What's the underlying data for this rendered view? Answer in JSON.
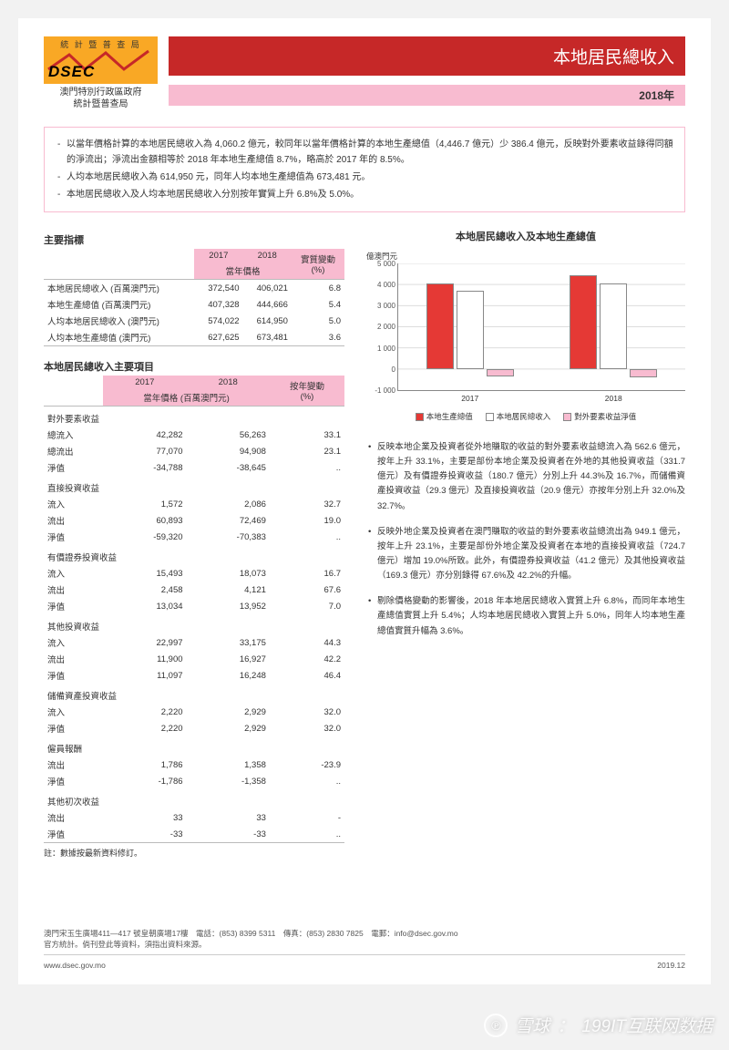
{
  "header": {
    "logo_top": "統 計 暨 普 查 局",
    "logo_text": "DSEC",
    "org_line1": "澳門特別行政區政府",
    "org_line2": "統計暨普查局",
    "title": "本地居民總收入",
    "year": "2018年"
  },
  "summary": {
    "items": [
      "以當年價格計算的本地居民總收入為 4,060.2 億元，較同年以當年價格計算的本地生產總值（4,446.7 億元）少 386.4 億元，反映對外要素收益錄得同額的淨流出；淨流出金額相等於 2018 年本地生產總值 8.7%，略高於 2017 年的 8.5%。",
      "人均本地居民總收入為 614,950 元，同年人均本地生產總值為 673,481 元。",
      "本地居民總收入及人均本地居民總收入分別按年實質上升 6.8%及 5.0%。"
    ]
  },
  "table1": {
    "title": "主要指標",
    "col_2017": "2017",
    "col_2018": "2018",
    "col_change": "實質變動\n(%)",
    "sub_header": "當年價格",
    "rows": [
      {
        "label": "本地居民總收入 (百萬澳門元)",
        "v17": "372,540",
        "v18": "406,021",
        "chg": "6.8"
      },
      {
        "label": "本地生產總值 (百萬澳門元)",
        "v17": "407,328",
        "v18": "444,666",
        "chg": "5.4"
      },
      {
        "label": "人均本地居民總收入 (澳門元)",
        "v17": "574,022",
        "v18": "614,950",
        "chg": "5.0"
      },
      {
        "label": "人均本地生產總值 (澳門元)",
        "v17": "627,625",
        "v18": "673,481",
        "chg": "3.6"
      }
    ]
  },
  "table2": {
    "title": "本地居民總收入主要項目",
    "col_2017": "2017",
    "col_2018": "2018",
    "col_change": "按年變動\n(%)",
    "sub_header": "當年價格 (百萬澳門元)",
    "groups": [
      {
        "head": "對外要素收益",
        "rows": [
          {
            "label": "總流入",
            "v17": "42,282",
            "v18": "56,263",
            "chg": "33.1"
          },
          {
            "label": "總流出",
            "v17": "77,070",
            "v18": "94,908",
            "chg": "23.1"
          },
          {
            "label": "淨值",
            "v17": "-34,788",
            "v18": "-38,645",
            "chg": ".."
          }
        ]
      },
      {
        "head": "直接投資收益",
        "rows": [
          {
            "label": "流入",
            "v17": "1,572",
            "v18": "2,086",
            "chg": "32.7"
          },
          {
            "label": "流出",
            "v17": "60,893",
            "v18": "72,469",
            "chg": "19.0"
          },
          {
            "label": "淨值",
            "v17": "-59,320",
            "v18": "-70,383",
            "chg": ".."
          }
        ]
      },
      {
        "head": "有價證券投資收益",
        "rows": [
          {
            "label": "流入",
            "v17": "15,493",
            "v18": "18,073",
            "chg": "16.7"
          },
          {
            "label": "流出",
            "v17": "2,458",
            "v18": "4,121",
            "chg": "67.6"
          },
          {
            "label": "淨值",
            "v17": "13,034",
            "v18": "13,952",
            "chg": "7.0"
          }
        ]
      },
      {
        "head": "其他投資收益",
        "rows": [
          {
            "label": "流入",
            "v17": "22,997",
            "v18": "33,175",
            "chg": "44.3"
          },
          {
            "label": "流出",
            "v17": "11,900",
            "v18": "16,927",
            "chg": "42.2"
          },
          {
            "label": "淨值",
            "v17": "11,097",
            "v18": "16,248",
            "chg": "46.4"
          }
        ]
      },
      {
        "head": "儲備資產投資收益",
        "rows": [
          {
            "label": "流入",
            "v17": "2,220",
            "v18": "2,929",
            "chg": "32.0"
          },
          {
            "label": "淨值",
            "v17": "2,220",
            "v18": "2,929",
            "chg": "32.0"
          }
        ]
      },
      {
        "head": "僱員報酬",
        "rows": [
          {
            "label": "流出",
            "v17": "1,786",
            "v18": "1,358",
            "chg": "-23.9"
          },
          {
            "label": "淨值",
            "v17": "-1,786",
            "v18": "-1,358",
            "chg": ".."
          }
        ]
      },
      {
        "head": "其他初次收益",
        "rows": [
          {
            "label": "流出",
            "v17": "33",
            "v18": "33",
            "chg": "-"
          },
          {
            "label": "淨值",
            "v17": "-33",
            "v18": "-33",
            "chg": ".."
          }
        ]
      }
    ],
    "note": "註：數據按最新資料修訂。"
  },
  "chart": {
    "title": "本地居民總收入及本地生產總值",
    "y_label": "億澳門元",
    "y_ticks": [
      "5 000",
      "4 000",
      "3 000",
      "2 000",
      "1 000",
      "0",
      "-1 000"
    ],
    "ylim_min": -1000,
    "ylim_max": 5000,
    "x_categories": [
      "2017",
      "2018"
    ],
    "series": [
      {
        "name": "本地生產總值",
        "color": "#e53935",
        "values": [
          4073,
          4447
        ]
      },
      {
        "name": "本地居民總收入",
        "color": "#ffffff",
        "values": [
          3725,
          4060
        ]
      },
      {
        "name": "對外要素收益淨值",
        "color": "#f8bbd0",
        "values": [
          -348,
          -386
        ]
      }
    ],
    "background_color": "#ffffff",
    "grid_color": "#dddddd"
  },
  "bullets": {
    "items": [
      "反映本地企業及投資者從外地賺取的收益的對外要素收益總流入為 562.6 億元，按年上升 33.1%，主要是部份本地企業及投資者在外地的其他投資收益（331.7 億元）及有價證券投資收益（180.7 億元）分別上升 44.3%及 16.7%，而儲備資產投資收益（29.3 億元）及直接投資收益（20.9 億元）亦按年分別上升 32.0%及 32.7%。",
      "反映外地企業及投資者在澳門賺取的收益的對外要素收益總流出為 949.1 億元，按年上升 23.1%，主要是部份外地企業及投資者在本地的直接投資收益（724.7 億元）增加 19.0%所致。此外，有價證券投資收益（41.2 億元）及其他投資收益（169.3 億元）亦分別錄得 67.6%及 42.2%的升幅。",
      "剔除價格變動的影響後，2018 年本地居民總收入實質上升 6.8%，而同年本地生產總值實質上升 5.4%；人均本地居民總收入實質上升 5.0%，同年人均本地生產總值實質升幅為 3.6%。"
    ]
  },
  "footer": {
    "address": "澳門宋玉生廣場411—417 號皇朝廣場17樓　電話：(853) 8399 5311　傳真：(853) 2830 7825　電郵：info@dsec.gov.mo",
    "address2": "官方統計。倘刊登此等資料，須指出資料來源。",
    "website": "www.dsec.gov.mo",
    "date": "2019.12"
  },
  "watermark": {
    "icon": "℗",
    "text1": "雪球",
    "text2": "199IT互联网数据"
  }
}
